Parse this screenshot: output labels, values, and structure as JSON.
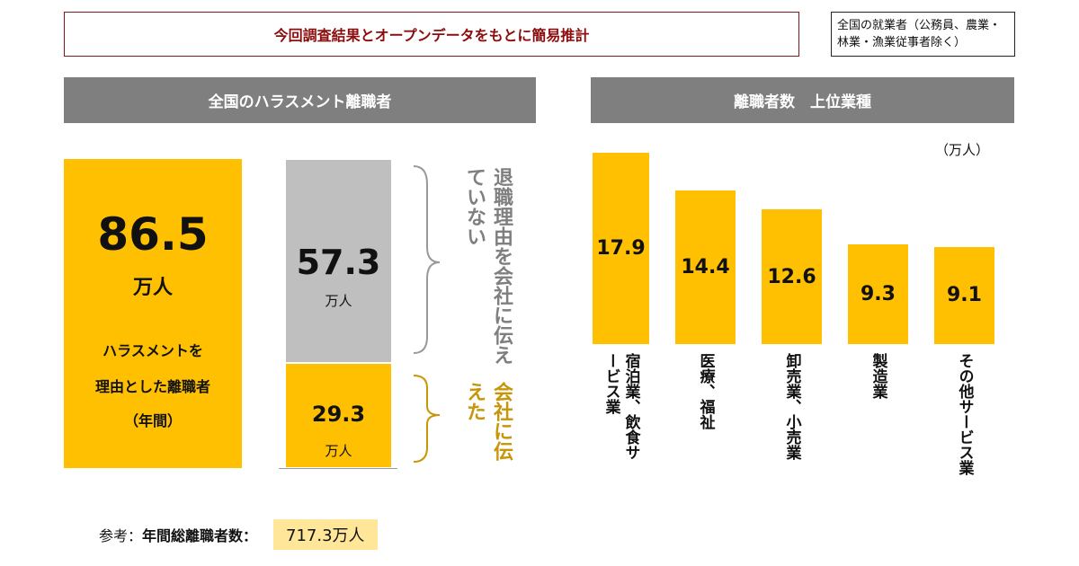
{
  "header": {
    "title": "今回調査結果とオープンデータをもとに簡易推計",
    "note": "全国の就業者（公務員、農業・林業・漁業従事者除く）"
  },
  "left": {
    "heading": "全国のハラスメント離職者",
    "total_value": "86.5",
    "total_unit": "万人",
    "total_label_1": "ハラスメントを",
    "total_label_2": "理由とした離職者",
    "total_label_3": "（年間）",
    "not_told_value": "57.3",
    "not_told_unit": "万人",
    "not_told_label": "退職理由を会社に伝えていない",
    "told_value": "29.3",
    "told_unit": "万人",
    "told_label": "会社に伝えた"
  },
  "reference": {
    "prefix": "参考：",
    "label": "年間総離職者数：",
    "value": "717.3万人"
  },
  "chart_data": {
    "type": "bar",
    "title": "離職者数　上位業種",
    "unit": "（万人）",
    "categories": [
      "宿泊業、飲食サービス業",
      "医療、福祉",
      "卸売業、小売業",
      "製造業",
      "その他サービス業"
    ],
    "values": [
      17.9,
      14.4,
      12.6,
      9.3,
      9.1
    ],
    "bar_color": "#fec000"
  },
  "colors": {
    "accent": "#fec000",
    "gray": "#bfbfbf",
    "header": "#7f7f7f",
    "title_red": "#8b0d0d",
    "told_text": "#c8960a"
  }
}
